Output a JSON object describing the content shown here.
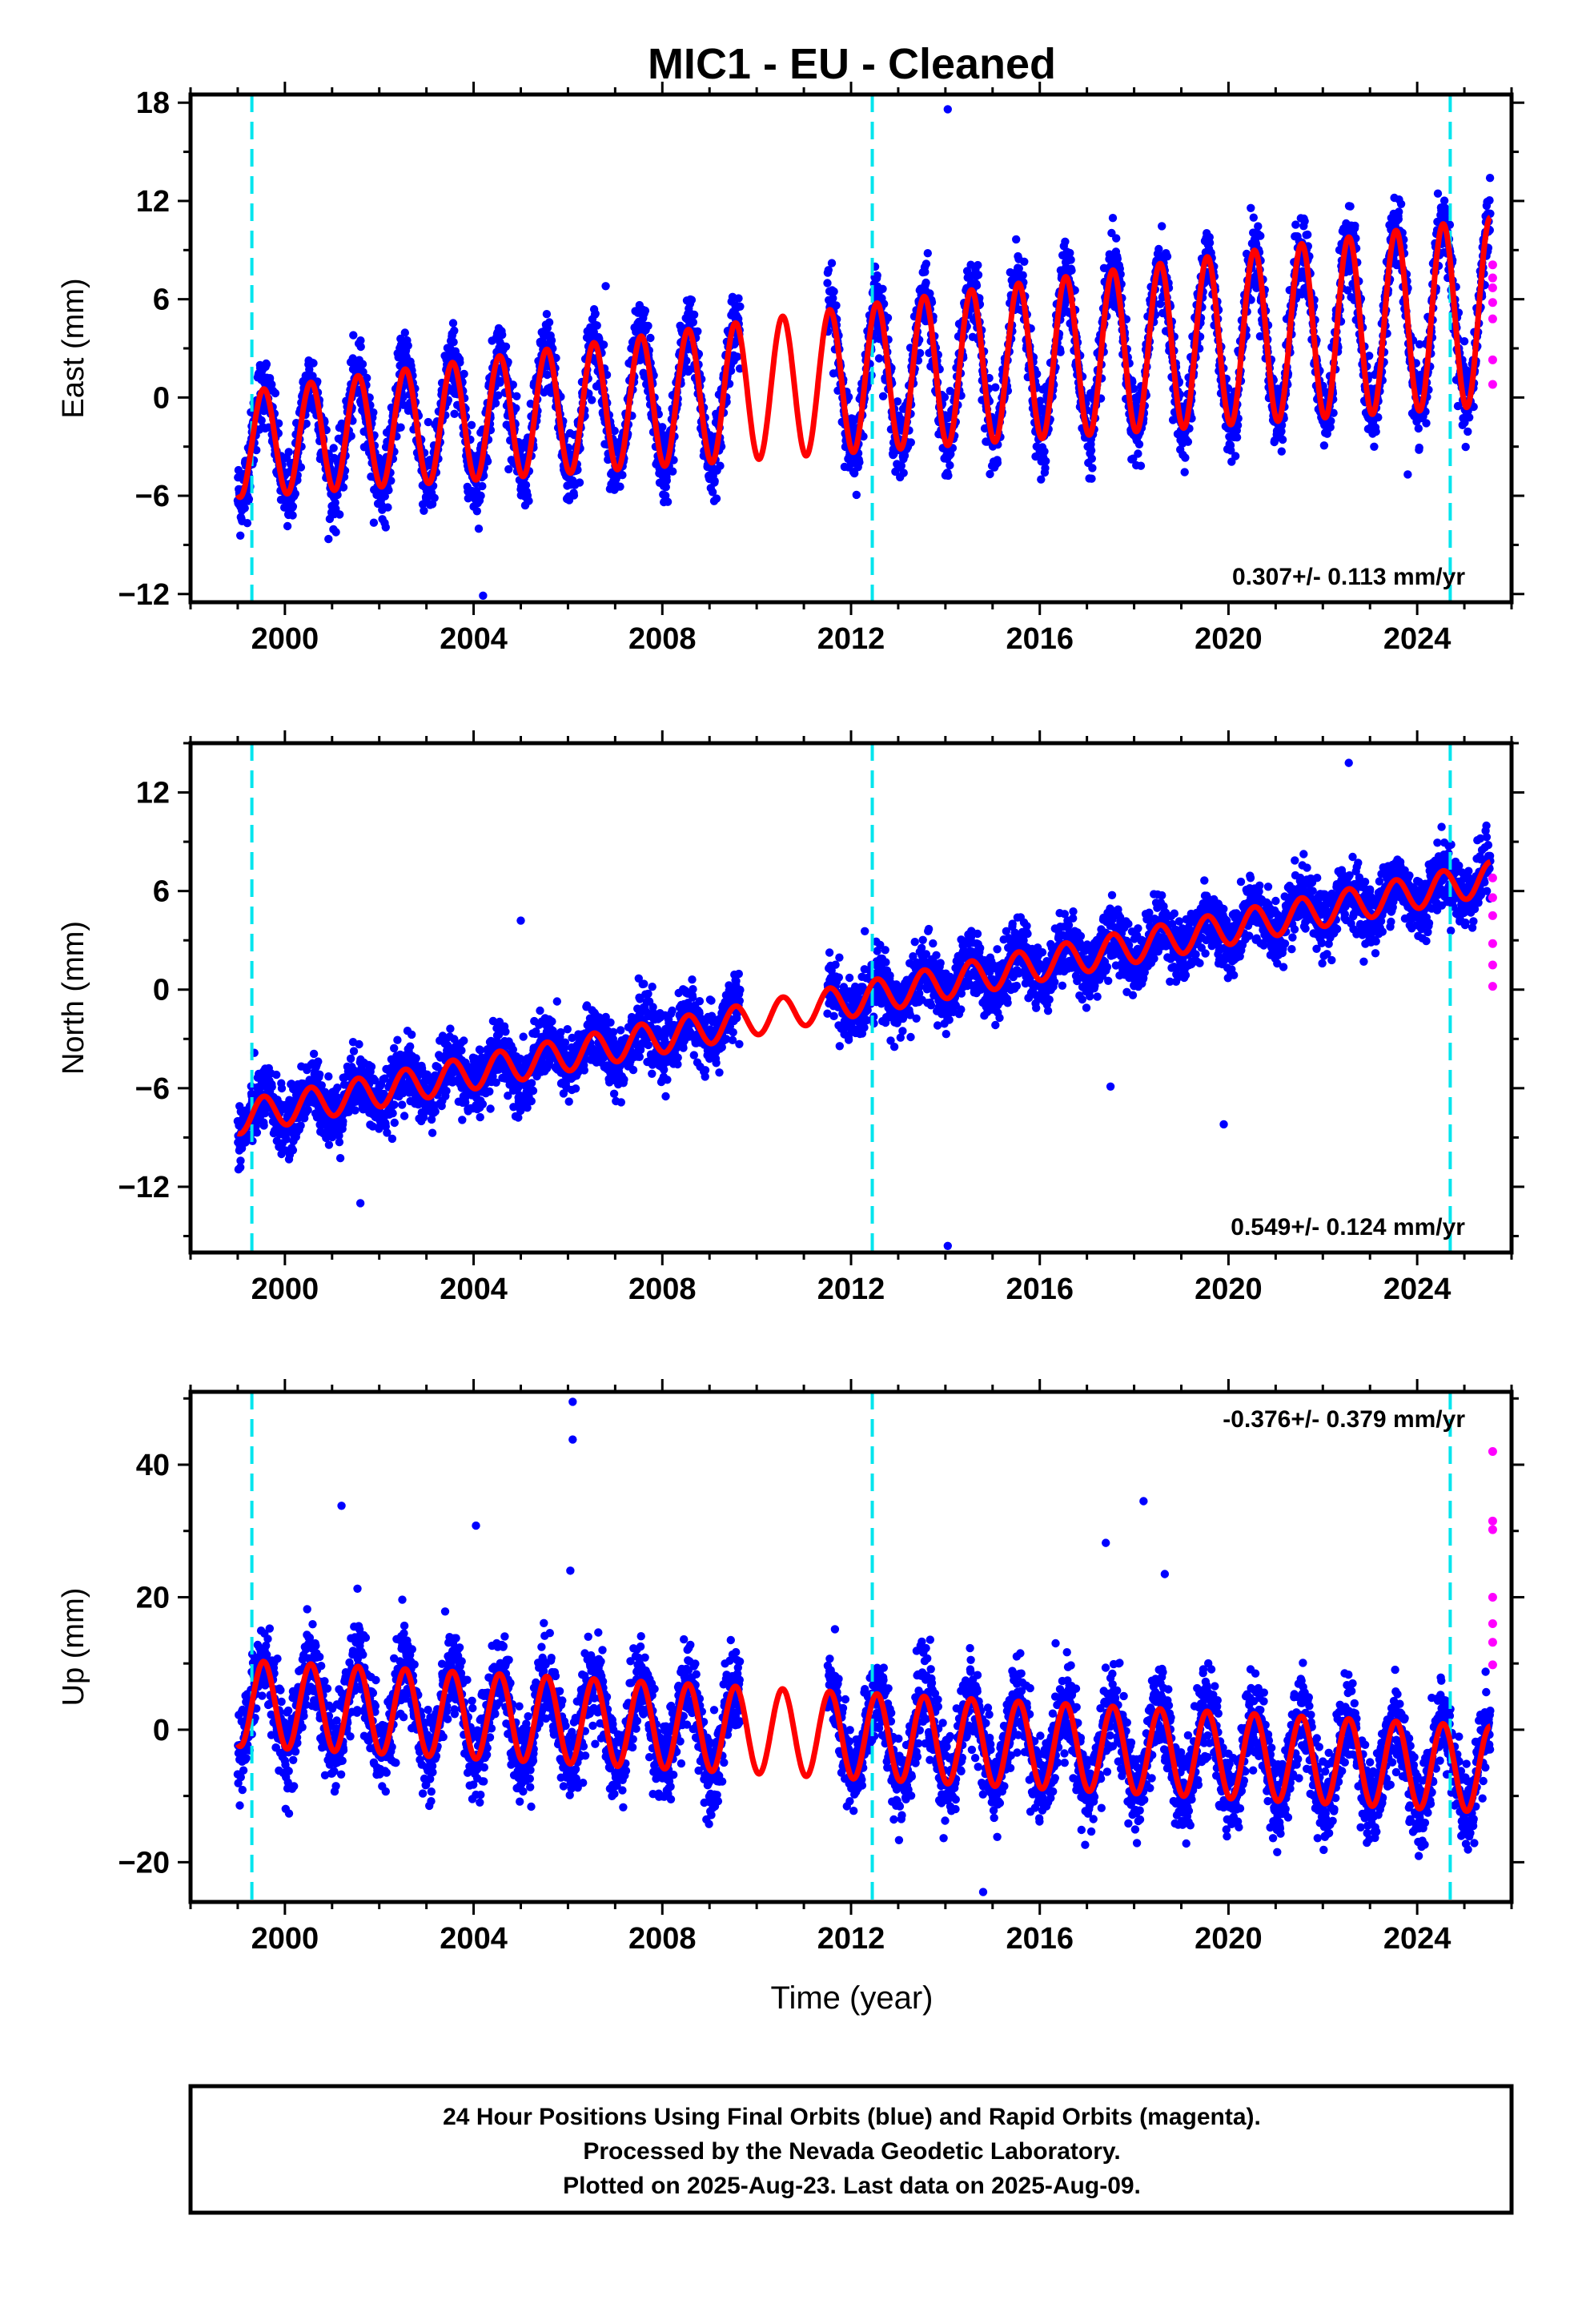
{
  "chart_data": [
    {
      "type": "scatter",
      "title": "MIC1  - EU - Cleaned",
      "ylabel": "East (mm)",
      "xlabel": "",
      "xlim": [
        1998.0,
        2026.0
      ],
      "ylim": [
        -12.5,
        18.5
      ],
      "x_ticks": [
        2000,
        2004,
        2008,
        2012,
        2016,
        2020,
        2024
      ],
      "y_ticks": [
        -12,
        -6,
        0,
        6,
        12,
        18
      ],
      "rate_label": "0.307+/- 0.113 mm/yr",
      "rate_position": "bottom-right",
      "grid": false,
      "vertical_markers": [
        1999.3,
        2012.45,
        2024.7
      ],
      "series": [
        {
          "name": "Final Orbits",
          "color": "#0000ff",
          "kind": "points",
          "segments": [
            [
              1999.0,
              2009.65
            ],
            [
              2011.5,
              2025.55
            ]
          ],
          "trend": {
            "start": -2.9,
            "rate": 0.307
          },
          "annual_amplitude": 3.2,
          "annual_amp_growth": 0.03,
          "noise": 1.9
        },
        {
          "name": "Rapid Orbits",
          "color": "#ff00ff",
          "kind": "rapid",
          "x": 2025.6,
          "y": [
            0.8,
            2.3,
            4.8,
            5.8,
            6.7,
            7.3,
            8.1
          ]
        },
        {
          "name": "Model",
          "color": "#ff0000",
          "kind": "model",
          "range": [
            1999.0,
            2025.55
          ]
        }
      ],
      "outliers": [
        {
          "x": 2014.05,
          "y": 17.6
        },
        {
          "x": 2006.8,
          "y": 6.8
        },
        {
          "x": 2023.8,
          "y": -4.7
        },
        {
          "x": 2004.2,
          "y": -12.1
        }
      ]
    },
    {
      "type": "scatter",
      "title": "",
      "ylabel": "North (mm)",
      "xlabel": "",
      "xlim": [
        1998.0,
        2026.0
      ],
      "ylim": [
        -16.0,
        15.0
      ],
      "x_ticks": [
        2000,
        2004,
        2008,
        2012,
        2016,
        2020,
        2024
      ],
      "y_ticks": [
        -12,
        -6,
        0,
        6,
        12
      ],
      "rate_label": "0.549+/- 0.124 mm/yr",
      "rate_position": "bottom-right",
      "grid": false,
      "vertical_markers": [
        1999.3,
        2012.45,
        2024.7
      ],
      "series": [
        {
          "name": "Final Orbits",
          "color": "#0000ff",
          "kind": "points",
          "segments": [
            [
              1999.0,
              2009.65
            ],
            [
              2011.5,
              2025.55
            ]
          ],
          "trend": {
            "start": -7.8,
            "rate": 0.549
          },
          "annual_amplitude": 1.0,
          "annual_amp_growth": 0.0,
          "noise": 1.6
        },
        {
          "name": "Rapid Orbits",
          "color": "#ff00ff",
          "kind": "rapid",
          "x": 2025.6,
          "y": [
            0.2,
            1.5,
            2.8,
            4.5,
            5.6,
            6.8
          ]
        },
        {
          "name": "Model",
          "color": "#ff0000",
          "kind": "model",
          "range": [
            1999.0,
            2025.55
          ]
        }
      ],
      "outliers": [
        {
          "x": 2022.55,
          "y": 13.8
        },
        {
          "x": 2014.05,
          "y": -15.6
        },
        {
          "x": 2019.9,
          "y": -8.2
        },
        {
          "x": 2017.5,
          "y": -5.9
        },
        {
          "x": 2005.0,
          "y": 4.2
        },
        {
          "x": 2001.6,
          "y": -13.0
        }
      ]
    },
    {
      "type": "scatter",
      "title": "",
      "ylabel": "Up (mm)",
      "xlabel": "Time (year)",
      "xlim": [
        1998.0,
        2026.0
      ],
      "ylim": [
        -26.0,
        51.0
      ],
      "x_ticks": [
        2000,
        2004,
        2008,
        2012,
        2016,
        2020,
        2024
      ],
      "y_ticks": [
        -20,
        0,
        20,
        40
      ],
      "rate_label": "-0.376+/- 0.379 mm/yr",
      "rate_position": "top-right",
      "grid": false,
      "vertical_markers": [
        1999.3,
        2012.45,
        2024.7
      ],
      "series": [
        {
          "name": "Final Orbits",
          "color": "#0000ff",
          "kind": "points",
          "segments": [
            [
              1999.0,
              2009.65
            ],
            [
              2011.5,
              2025.55
            ]
          ],
          "trend": {
            "start": 4.0,
            "rate": -0.376
          },
          "annual_amplitude": 6.5,
          "annual_amp_growth": 0.0,
          "noise": 5.5
        },
        {
          "name": "Rapid Orbits",
          "color": "#ff00ff",
          "kind": "rapid",
          "x": 2025.6,
          "y": [
            9.8,
            13.2,
            16.0,
            20.0,
            30.2,
            31.5,
            42.0
          ]
        },
        {
          "name": "Model",
          "color": "#ff0000",
          "kind": "model",
          "range": [
            1999.0,
            2025.55
          ]
        }
      ],
      "outliers": [
        {
          "x": 2006.1,
          "y": 49.5
        },
        {
          "x": 2006.1,
          "y": 43.8
        },
        {
          "x": 2001.2,
          "y": 33.8
        },
        {
          "x": 2004.05,
          "y": 30.8
        },
        {
          "x": 2018.2,
          "y": 34.5
        },
        {
          "x": 2017.4,
          "y": 28.2
        },
        {
          "x": 2014.8,
          "y": -24.5
        },
        {
          "x": 2006.05,
          "y": 24.0
        },
        {
          "x": 2018.65,
          "y": 23.5
        }
      ]
    }
  ],
  "footer": {
    "line1": "24 Hour Positions Using Final Orbits (blue) and Rapid Orbits (magenta).",
    "line2": "Processed by the Nevada Geodetic Laboratory.",
    "line3": "Plotted on 2025-Aug-23. Last data on 2025-Aug-09."
  },
  "colors": {
    "final": "#0000ff",
    "rapid": "#ff00ff",
    "model": "#ff0000",
    "marker": "#00e5ee"
  }
}
